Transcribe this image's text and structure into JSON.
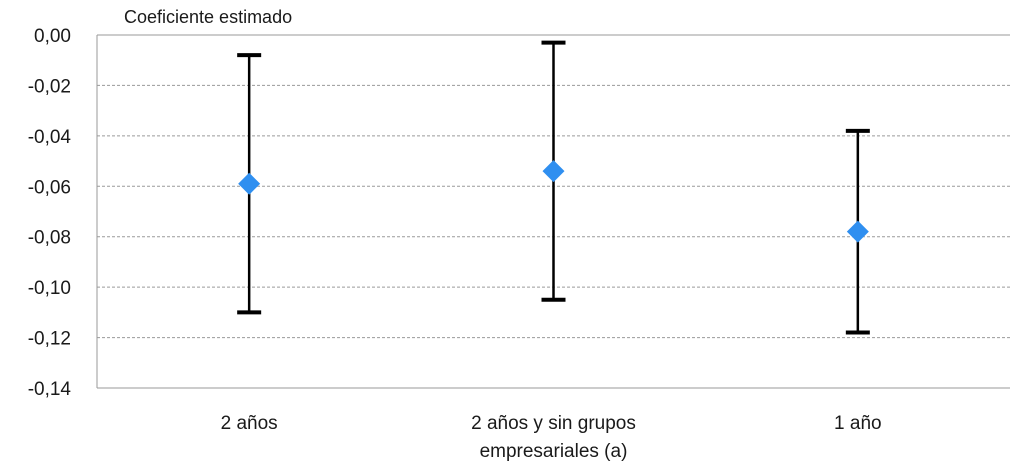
{
  "chart_data": {
    "type": "scatter",
    "ylabel": "Coeficiente estimado",
    "ylim": [
      -0.14,
      0.0
    ],
    "yticks": [
      0.0,
      -0.02,
      -0.04,
      -0.06,
      -0.08,
      -0.1,
      -0.12,
      -0.14
    ],
    "ytick_labels": [
      "0,00",
      "-0,02",
      "-0,04",
      "-0,06",
      "-0,08",
      "-0,10",
      "-0,12",
      "-0,14"
    ],
    "categories": [
      [
        "2 años"
      ],
      [
        "2 años y sin grupos",
        "empresariales (a)"
      ],
      [
        "1 año"
      ]
    ],
    "values": [
      -0.059,
      -0.054,
      -0.078
    ],
    "lower": [
      -0.11,
      -0.105,
      -0.118
    ],
    "upper": [
      -0.008,
      -0.003,
      -0.038
    ],
    "grid": true,
    "marker": "diamond",
    "marker_color": "#2f8ff0",
    "errorbar_color": "#000000"
  }
}
